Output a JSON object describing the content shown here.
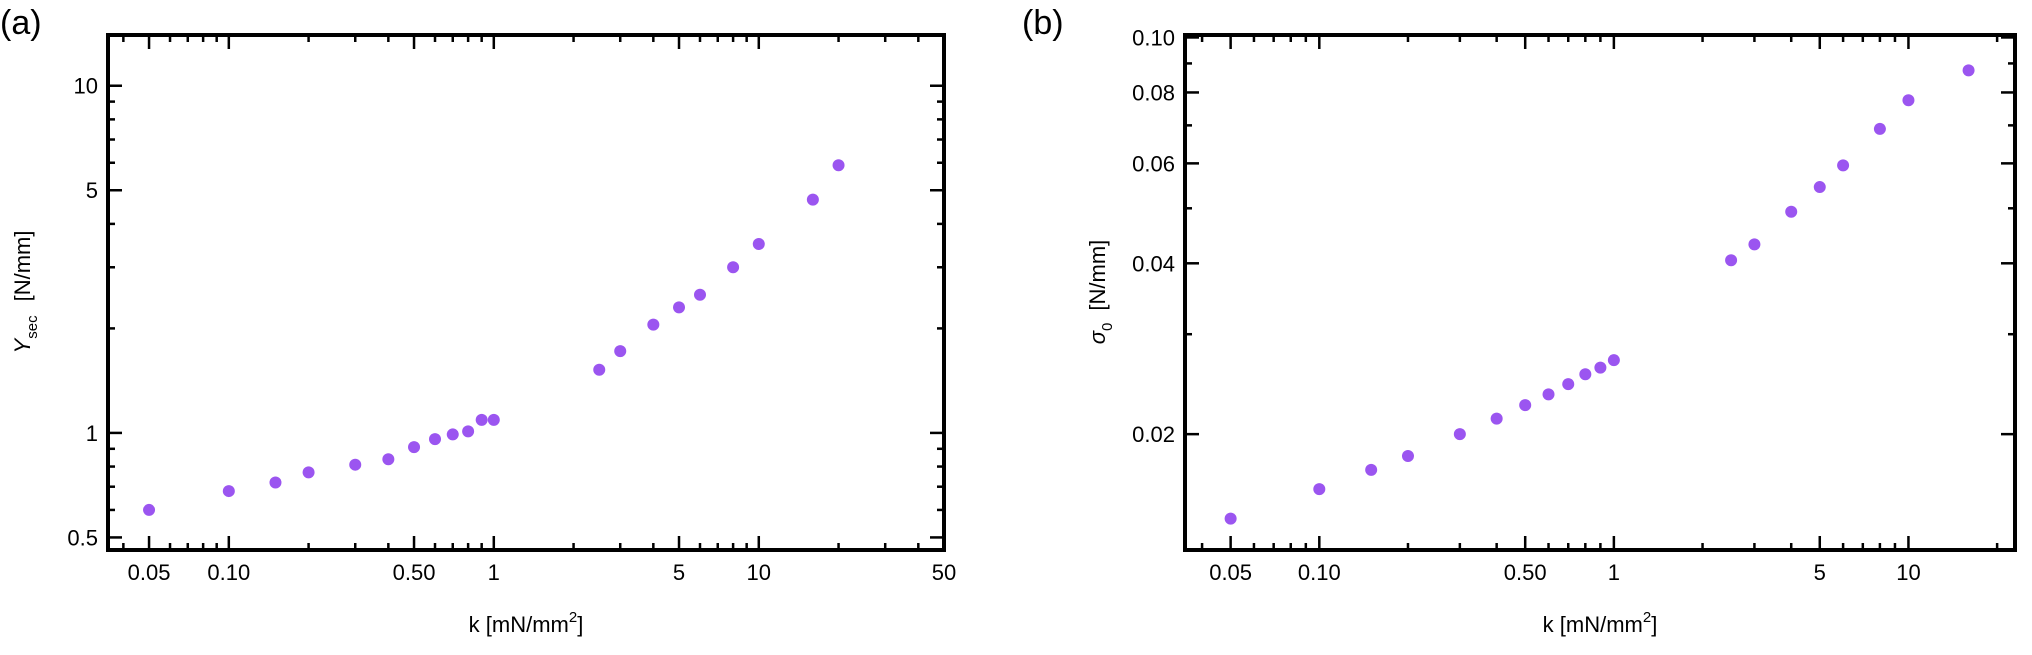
{
  "chart_data": [
    {
      "type": "scatter",
      "panel_label": "(a)",
      "xlabel": {
        "text": "k [mN/mm",
        "superscript": "2",
        "suffix": "]"
      },
      "ylabel": {
        "symbol": "Y",
        "subscript": "sec",
        "unit": "[N/mm]"
      },
      "x_scale": "log",
      "y_scale": "log",
      "xlim": [
        0.035,
        50
      ],
      "ylim": [
        0.46,
        14
      ],
      "x_ticks": [
        {
          "value": 0.05,
          "label": "0.05"
        },
        {
          "value": 0.1,
          "label": "0.10"
        },
        {
          "value": 0.5,
          "label": "0.50"
        },
        {
          "value": 1,
          "label": "1"
        },
        {
          "value": 5,
          "label": "5"
        },
        {
          "value": 10,
          "label": "10"
        },
        {
          "value": 50,
          "label": "50"
        }
      ],
      "y_ticks": [
        {
          "value": 0.5,
          "label": "0.5"
        },
        {
          "value": 1,
          "label": "1"
        },
        {
          "value": 5,
          "label": "5"
        },
        {
          "value": 10,
          "label": "10"
        }
      ],
      "grid": false,
      "marker_color": "#9b55f0",
      "points": [
        {
          "x": 0.05,
          "y": 0.6
        },
        {
          "x": 0.1,
          "y": 0.68
        },
        {
          "x": 0.15,
          "y": 0.72
        },
        {
          "x": 0.2,
          "y": 0.77
        },
        {
          "x": 0.3,
          "y": 0.81
        },
        {
          "x": 0.4,
          "y": 0.84
        },
        {
          "x": 0.5,
          "y": 0.91
        },
        {
          "x": 0.6,
          "y": 0.96
        },
        {
          "x": 0.7,
          "y": 0.99
        },
        {
          "x": 0.8,
          "y": 1.01
        },
        {
          "x": 0.9,
          "y": 1.09
        },
        {
          "x": 1.0,
          "y": 1.09
        },
        {
          "x": 2.5,
          "y": 1.52
        },
        {
          "x": 3.0,
          "y": 1.72
        },
        {
          "x": 4.0,
          "y": 2.05
        },
        {
          "x": 5.0,
          "y": 2.3
        },
        {
          "x": 6.0,
          "y": 2.5
        },
        {
          "x": 8.0,
          "y": 3.0
        },
        {
          "x": 10.0,
          "y": 3.5
        },
        {
          "x": 16.0,
          "y": 4.7
        },
        {
          "x": 20.0,
          "y": 5.9
        }
      ]
    },
    {
      "type": "scatter",
      "panel_label": "(b)",
      "xlabel": {
        "text": "k [mN/mm",
        "superscript": "2",
        "suffix": "]"
      },
      "ylabel": {
        "symbol": "σ",
        "subscript": "0",
        "unit": "[N/mm]"
      },
      "x_scale": "log",
      "y_scale": "log",
      "xlim": [
        0.035,
        23
      ],
      "ylim": [
        0.0125,
        0.101
      ],
      "x_ticks": [
        {
          "value": 0.05,
          "label": "0.05"
        },
        {
          "value": 0.1,
          "label": "0.10"
        },
        {
          "value": 0.5,
          "label": "0.50"
        },
        {
          "value": 1,
          "label": "1"
        },
        {
          "value": 5,
          "label": "5"
        },
        {
          "value": 10,
          "label": "10"
        }
      ],
      "y_ticks": [
        {
          "value": 0.02,
          "label": "0.02"
        },
        {
          "value": 0.04,
          "label": "0.04"
        },
        {
          "value": 0.06,
          "label": "0.06"
        },
        {
          "value": 0.08,
          "label": "0.08"
        },
        {
          "value": 0.1,
          "label": "0.10"
        }
      ],
      "grid": false,
      "marker_color": "#9b55f0",
      "points": [
        {
          "x": 0.05,
          "y": 0.0142
        },
        {
          "x": 0.1,
          "y": 0.016
        },
        {
          "x": 0.15,
          "y": 0.0173
        },
        {
          "x": 0.2,
          "y": 0.0183
        },
        {
          "x": 0.3,
          "y": 0.02
        },
        {
          "x": 0.4,
          "y": 0.0213
        },
        {
          "x": 0.5,
          "y": 0.0225
        },
        {
          "x": 0.6,
          "y": 0.0235
        },
        {
          "x": 0.7,
          "y": 0.0245
        },
        {
          "x": 0.8,
          "y": 0.0255
        },
        {
          "x": 0.9,
          "y": 0.0262
        },
        {
          "x": 1.0,
          "y": 0.027
        },
        {
          "x": 2.5,
          "y": 0.0405
        },
        {
          "x": 3.0,
          "y": 0.0432
        },
        {
          "x": 4.0,
          "y": 0.0493
        },
        {
          "x": 5.0,
          "y": 0.0545
        },
        {
          "x": 6.0,
          "y": 0.0595
        },
        {
          "x": 8.0,
          "y": 0.069
        },
        {
          "x": 10.0,
          "y": 0.0775
        },
        {
          "x": 16.0,
          "y": 0.0875
        }
      ]
    }
  ]
}
